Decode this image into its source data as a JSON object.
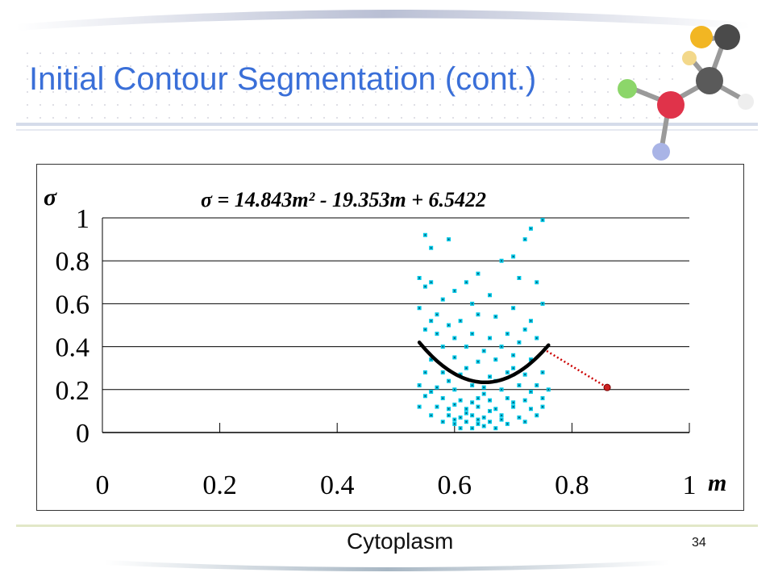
{
  "slide": {
    "title": "Initial Contour Segmentation (cont.)",
    "caption": "Cytoplasm",
    "page_number": "34"
  },
  "colors": {
    "title": "#3a6fd8",
    "points": "#00c8e6",
    "fit_curve": "#000000",
    "pointer_line": "#cc0000",
    "pointer_marker": "#cc2222"
  },
  "chart_data": {
    "type": "scatter",
    "title": "σ = 14.843m² - 19.353m + 6.5422",
    "xlabel": "m",
    "ylabel": "σ",
    "xlim": [
      0,
      1
    ],
    "ylim": [
      0,
      1
    ],
    "x_ticks": [
      "0",
      "0.2",
      "0.4",
      "0.6",
      "0.8",
      "1"
    ],
    "y_ticks": [
      "0",
      "0.2",
      "0.4",
      "0.6",
      "0.8",
      "1"
    ],
    "grid": "horizontal",
    "fit": {
      "a": 14.843,
      "b": -19.353,
      "c": 6.5422,
      "x_range": [
        0.54,
        0.76
      ]
    },
    "pointer": {
      "from": [
        0.757,
        0.38
      ],
      "to": [
        0.86,
        0.21
      ]
    },
    "points": [
      [
        0.55,
        0.92
      ],
      [
        0.59,
        0.9
      ],
      [
        0.56,
        0.86
      ],
      [
        0.54,
        0.72
      ],
      [
        0.56,
        0.7
      ],
      [
        0.55,
        0.68
      ],
      [
        0.58,
        0.62
      ],
      [
        0.6,
        0.66
      ],
      [
        0.62,
        0.7
      ],
      [
        0.64,
        0.74
      ],
      [
        0.68,
        0.8
      ],
      [
        0.7,
        0.82
      ],
      [
        0.72,
        0.9
      ],
      [
        0.73,
        0.95
      ],
      [
        0.75,
        0.99
      ],
      [
        0.71,
        0.72
      ],
      [
        0.74,
        0.7
      ],
      [
        0.66,
        0.64
      ],
      [
        0.63,
        0.6
      ],
      [
        0.57,
        0.55
      ],
      [
        0.54,
        0.58
      ],
      [
        0.56,
        0.52
      ],
      [
        0.59,
        0.5
      ],
      [
        0.61,
        0.52
      ],
      [
        0.64,
        0.55
      ],
      [
        0.67,
        0.54
      ],
      [
        0.7,
        0.58
      ],
      [
        0.73,
        0.52
      ],
      [
        0.75,
        0.6
      ],
      [
        0.72,
        0.48
      ],
      [
        0.69,
        0.46
      ],
      [
        0.66,
        0.44
      ],
      [
        0.63,
        0.46
      ],
      [
        0.6,
        0.44
      ],
      [
        0.57,
        0.46
      ],
      [
        0.55,
        0.48
      ],
      [
        0.58,
        0.4
      ],
      [
        0.62,
        0.4
      ],
      [
        0.65,
        0.38
      ],
      [
        0.68,
        0.4
      ],
      [
        0.71,
        0.42
      ],
      [
        0.74,
        0.44
      ],
      [
        0.56,
        0.34
      ],
      [
        0.6,
        0.35
      ],
      [
        0.64,
        0.33
      ],
      [
        0.67,
        0.34
      ],
      [
        0.7,
        0.36
      ],
      [
        0.73,
        0.34
      ],
      [
        0.55,
        0.28
      ],
      [
        0.58,
        0.28
      ],
      [
        0.61,
        0.27
      ],
      [
        0.66,
        0.26
      ],
      [
        0.69,
        0.28
      ],
      [
        0.72,
        0.27
      ],
      [
        0.75,
        0.28
      ],
      [
        0.54,
        0.22
      ],
      [
        0.57,
        0.21
      ],
      [
        0.6,
        0.2
      ],
      [
        0.63,
        0.22
      ],
      [
        0.65,
        0.21
      ],
      [
        0.68,
        0.2
      ],
      [
        0.71,
        0.22
      ],
      [
        0.74,
        0.22
      ],
      [
        0.76,
        0.2
      ],
      [
        0.55,
        0.17
      ],
      [
        0.58,
        0.16
      ],
      [
        0.61,
        0.15
      ],
      [
        0.64,
        0.16
      ],
      [
        0.66,
        0.15
      ],
      [
        0.69,
        0.16
      ],
      [
        0.72,
        0.15
      ],
      [
        0.75,
        0.16
      ],
      [
        0.54,
        0.12
      ],
      [
        0.57,
        0.12
      ],
      [
        0.59,
        0.11
      ],
      [
        0.62,
        0.11
      ],
      [
        0.64,
        0.12
      ],
      [
        0.67,
        0.11
      ],
      [
        0.7,
        0.12
      ],
      [
        0.73,
        0.11
      ],
      [
        0.75,
        0.12
      ],
      [
        0.56,
        0.08
      ],
      [
        0.59,
        0.08
      ],
      [
        0.61,
        0.07
      ],
      [
        0.63,
        0.08
      ],
      [
        0.65,
        0.07
      ],
      [
        0.68,
        0.08
      ],
      [
        0.71,
        0.07
      ],
      [
        0.74,
        0.08
      ],
      [
        0.58,
        0.05
      ],
      [
        0.6,
        0.04
      ],
      [
        0.62,
        0.05
      ],
      [
        0.64,
        0.04
      ],
      [
        0.66,
        0.05
      ],
      [
        0.69,
        0.04
      ],
      [
        0.72,
        0.05
      ],
      [
        0.63,
        0.02
      ],
      [
        0.65,
        0.03
      ],
      [
        0.67,
        0.02
      ],
      [
        0.61,
        0.02
      ],
      [
        0.7,
        0.3
      ],
      [
        0.62,
        0.3
      ],
      [
        0.59,
        0.24
      ],
      [
        0.67,
        0.24
      ],
      [
        0.73,
        0.19
      ],
      [
        0.56,
        0.19
      ],
      [
        0.65,
        0.18
      ],
      [
        0.63,
        0.14
      ],
      [
        0.6,
        0.13
      ],
      [
        0.7,
        0.14
      ],
      [
        0.66,
        0.1
      ],
      [
        0.62,
        0.09
      ],
      [
        0.68,
        0.06
      ],
      [
        0.6,
        0.06
      ],
      [
        0.64,
        0.06
      ]
    ]
  }
}
